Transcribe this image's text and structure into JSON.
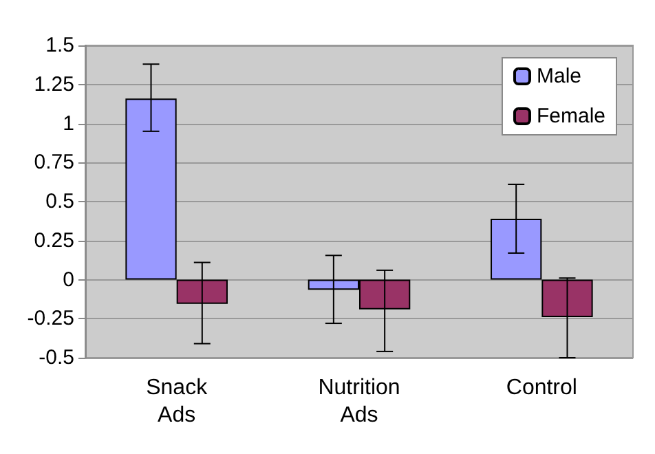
{
  "chart_data": {
    "type": "bar",
    "categories": [
      "Snack\nAds",
      "Nutrition\nAds",
      "Control"
    ],
    "series": [
      {
        "name": "Male",
        "color": "#9999ff",
        "values": [
          1.16,
          -0.065,
          0.39
        ],
        "errors": [
          [
            0.95,
            1.38
          ],
          [
            -0.28,
            0.155
          ],
          [
            0.17,
            0.61
          ]
        ]
      },
      {
        "name": "Female",
        "color": "#993366",
        "values": [
          -0.155,
          -0.19,
          -0.24
        ],
        "errors": [
          [
            -0.41,
            0.11
          ],
          [
            -0.46,
            0.06
          ],
          [
            -0.5,
            0.01
          ]
        ]
      }
    ],
    "ylim": [
      -0.5,
      1.5
    ],
    "yticks": [
      -0.5,
      -0.25,
      0,
      0.25,
      0.5,
      0.75,
      1,
      1.25,
      1.5
    ],
    "grid": "y",
    "legend": "top right"
  }
}
